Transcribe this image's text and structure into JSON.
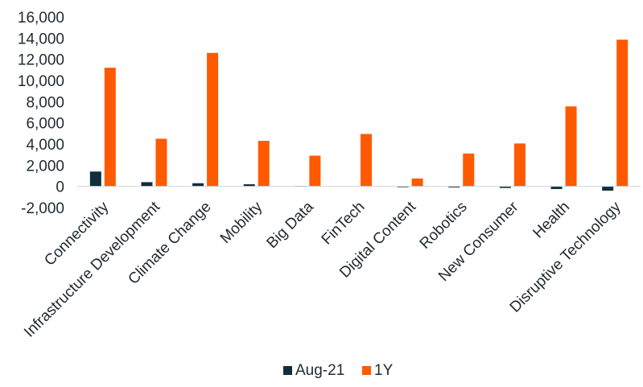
{
  "chart_data": {
    "type": "bar",
    "categories": [
      "Connectivity",
      "Infrastructure Development",
      "Climate Change",
      "Mobility",
      "Big Data",
      "FinTech",
      "Digital Content",
      "Robotics",
      "New Consumer",
      "Health",
      "Disruptive Technology"
    ],
    "series": [
      {
        "name": "Aug-21",
        "color": "#0f2f3a",
        "values": [
          1400,
          400,
          300,
          200,
          50,
          0,
          -80,
          -100,
          -150,
          -250,
          -400
        ]
      },
      {
        "name": "1Y",
        "color": "#ff5a00",
        "values": [
          11200,
          4500,
          12600,
          4300,
          2900,
          4950,
          750,
          3100,
          4050,
          7550,
          13850
        ]
      }
    ],
    "ylim": [
      -2000,
      16000
    ],
    "yticks": [
      "16,000",
      "14,000",
      "12,000",
      "10,000",
      "8,000",
      "6,000",
      "4,000",
      "2,000",
      "0",
      "-2,000"
    ],
    "ytick_values": [
      16000,
      14000,
      12000,
      10000,
      8000,
      6000,
      4000,
      2000,
      0,
      -2000
    ],
    "grid": false,
    "legend_position": "bottom",
    "title": "",
    "xlabel": "",
    "ylabel": ""
  }
}
